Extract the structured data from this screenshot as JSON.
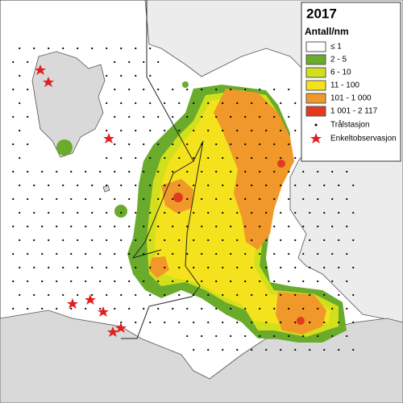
{
  "legend": {
    "title": "2017",
    "subtitle": "Antall/nm",
    "items": [
      {
        "label": "≤ 1",
        "color": "#ffffff"
      },
      {
        "label": "2 - 5",
        "color": "#6aab2c"
      },
      {
        "label": "6 - 10",
        "color": "#d2e01c"
      },
      {
        "label": "11 - 100",
        "color": "#f4e21c"
      },
      {
        "label": "101 - 1 000",
        "color": "#f0982a"
      },
      {
        "label": "1 001 - 2 117",
        "color": "#e33a1f"
      }
    ],
    "station": "Trålstasjon",
    "observation": "Enkeltobservasjon"
  }
}
